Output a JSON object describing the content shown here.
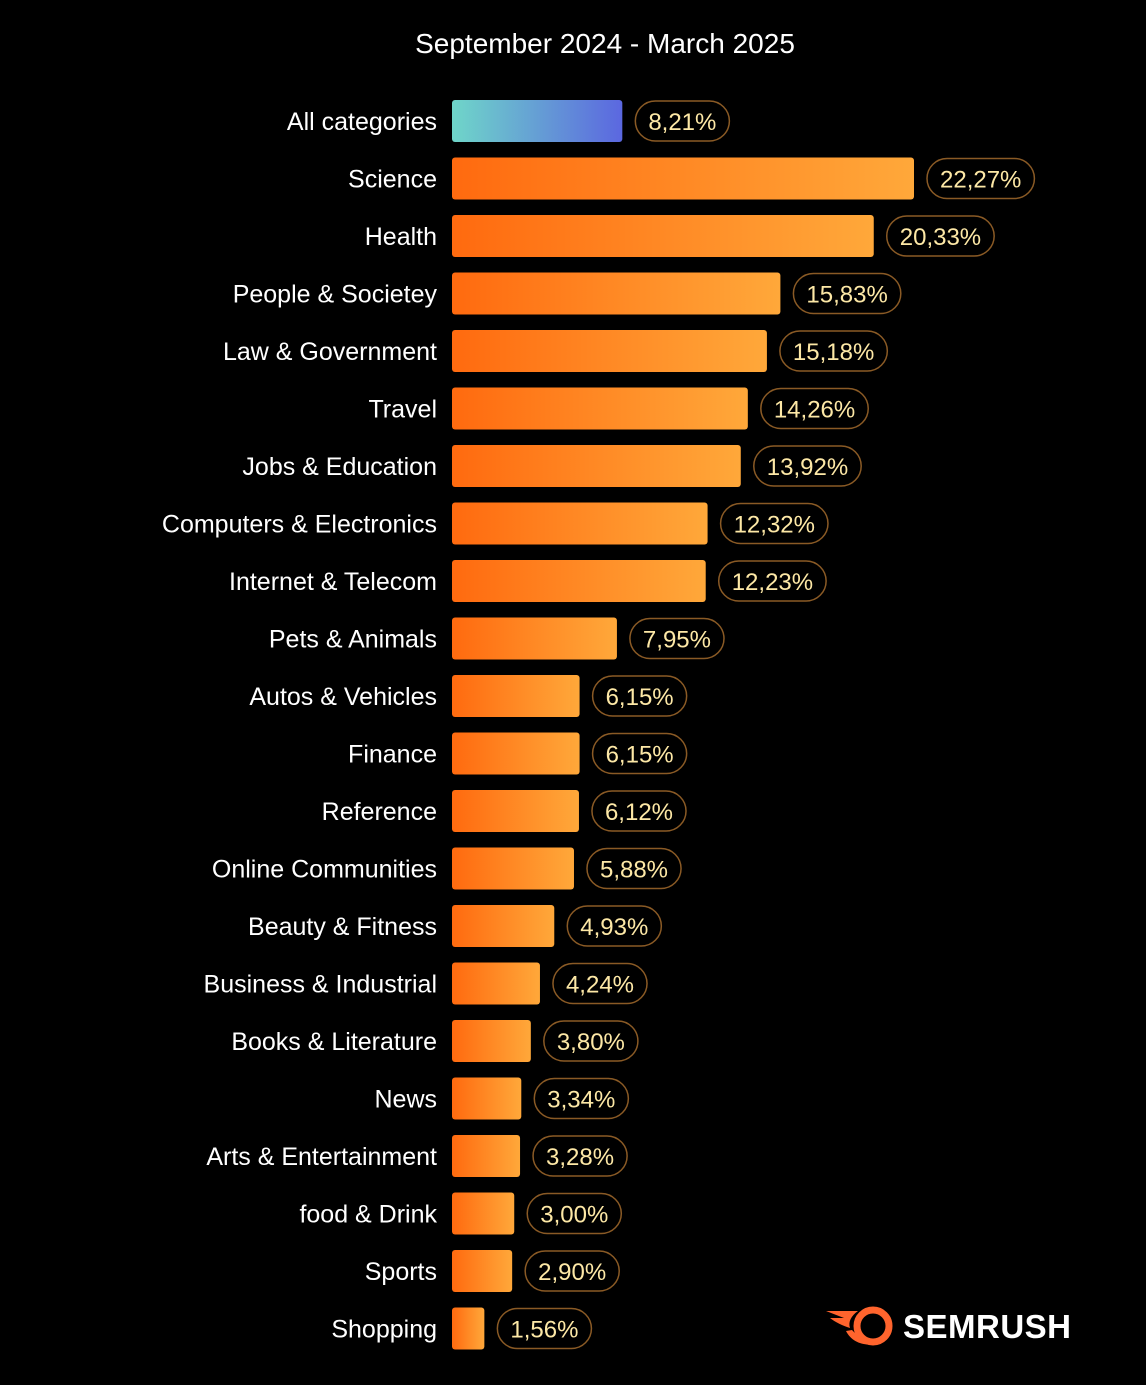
{
  "chart_data": {
    "type": "bar",
    "orientation": "horizontal",
    "title": "September 2024 - March 2025",
    "categories": [
      "All categories",
      "Science",
      "Health",
      "People & Societey",
      "Law & Government",
      "Travel",
      "Jobs & Education",
      "Computers & Electronics",
      "Internet & Telecom",
      "Pets & Animals",
      "Autos & Vehicles",
      "Finance",
      "Reference",
      "Online Communities",
      "Beauty & Fitness",
      "Business & Industrial",
      "Books & Literature",
      "News",
      "Arts & Entertainment",
      "food & Drink",
      "Sports",
      "Shopping"
    ],
    "values": [
      8.21,
      22.27,
      20.33,
      15.83,
      15.18,
      14.26,
      13.92,
      12.32,
      12.23,
      7.95,
      6.15,
      6.15,
      6.12,
      5.88,
      4.93,
      4.24,
      3.8,
      3.34,
      3.28,
      3.0,
      2.9,
      1.56
    ],
    "value_labels": [
      "8,21%",
      "22,27%",
      "20,33%",
      "15,83%",
      "15,18%",
      "14,26%",
      "13,92%",
      "12,32%",
      "12,23%",
      "7,95%",
      "6,15%",
      "6,15%",
      "6,12%",
      "5,88%",
      "4,93%",
      "4,24%",
      "3,80%",
      "3,34%",
      "3,28%",
      "3,00%",
      "2,90%",
      "1,56%"
    ],
    "highlight_index": 0,
    "xlabel": "",
    "ylabel": "",
    "grid": false,
    "legend": false,
    "colors": {
      "background": "#000000",
      "bar_gradient_start": "#ff6a0f",
      "bar_gradient_end": "#ffa83a",
      "highlight_gradient_start": "#6fd6c9",
      "highlight_gradient_end": "#5b67e0",
      "value_text": "#fde8a6",
      "value_pill_border": "#8a5a25",
      "label_text": "#ffffff"
    }
  },
  "brand": {
    "name": "SEMRUSH",
    "logo_icon": "semrush-fireball-icon",
    "logo_color": "#ff642d"
  }
}
